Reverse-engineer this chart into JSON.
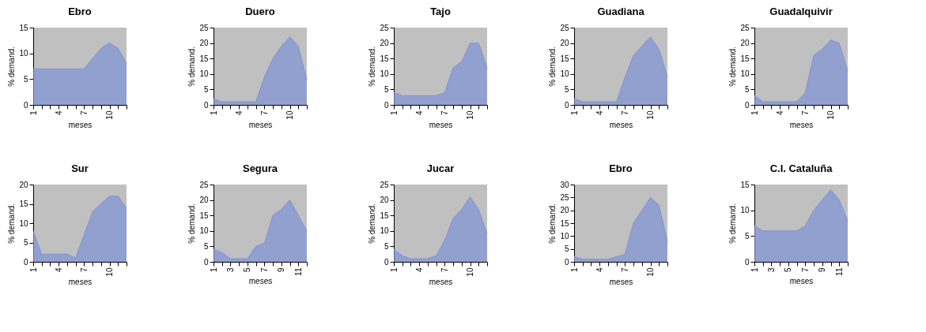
{
  "chart_data": [
    {
      "type": "area",
      "title": "Ebro",
      "xlabel": "meses",
      "ylabel": "% demand.",
      "x": [
        1,
        2,
        3,
        4,
        5,
        6,
        7,
        8,
        9,
        10,
        11,
        12
      ],
      "values": [
        7,
        7,
        7,
        7,
        7,
        7,
        7,
        9,
        11,
        12,
        11,
        8
      ],
      "color": "#7f93d6",
      "xlim": [
        1,
        12
      ],
      "xticks": [
        1,
        {
          "value": 2,
          "label": null
        },
        {
          "value": 3,
          "label": null
        },
        4,
        {
          "value": 5,
          "label": null
        },
        {
          "value": 6,
          "label": null
        },
        7,
        {
          "value": 8,
          "label": null
        },
        {
          "value": 9,
          "label": null
        },
        10,
        {
          "value": 11,
          "label": null
        },
        {
          "value": 12,
          "label": null
        }
      ],
      "ylim": [
        0,
        15
      ],
      "yticks": [
        0,
        5,
        10,
        15
      ]
    },
    {
      "type": "area",
      "title": "Duero",
      "xlabel": "meses",
      "ylabel": "% demand.",
      "x": [
        1,
        2,
        3,
        4,
        5,
        6,
        7,
        8,
        9,
        10,
        11,
        12
      ],
      "values": [
        2,
        1,
        1,
        1,
        1,
        1,
        9,
        15,
        19,
        22,
        19,
        8
      ],
      "color": "#7f93d6",
      "xlim": [
        1,
        12
      ],
      "xticks": [
        1,
        {
          "value": 2,
          "label": null
        },
        {
          "value": 3,
          "label": null
        },
        4,
        {
          "value": 5,
          "label": null
        },
        {
          "value": 6,
          "label": null
        },
        7,
        {
          "value": 8,
          "label": null
        },
        {
          "value": 9,
          "label": null
        },
        10,
        {
          "value": 11,
          "label": null
        },
        {
          "value": 12,
          "label": null
        }
      ],
      "ylim": [
        0,
        25
      ],
      "yticks": [
        0,
        5,
        10,
        15,
        20,
        25
      ]
    },
    {
      "type": "area",
      "title": "Tajo",
      "xlabel": "meses",
      "ylabel": "% demand.",
      "x": [
        1,
        2,
        3,
        4,
        5,
        6,
        7,
        8,
        9,
        10,
        11,
        12
      ],
      "values": [
        4,
        3,
        3,
        3,
        3,
        3,
        4,
        12,
        14,
        20,
        20,
        12
      ],
      "color": "#7f93d6",
      "xlim": [
        1,
        12
      ],
      "xticks": [
        1,
        {
          "value": 2,
          "label": null
        },
        {
          "value": 3,
          "label": null
        },
        4,
        {
          "value": 5,
          "label": null
        },
        {
          "value": 6,
          "label": null
        },
        7,
        {
          "value": 8,
          "label": null
        },
        {
          "value": 9,
          "label": null
        },
        10,
        {
          "value": 11,
          "label": null
        },
        {
          "value": 12,
          "label": null
        }
      ],
      "ylim": [
        0,
        25
      ],
      "yticks": [
        0,
        5,
        10,
        15,
        20,
        25
      ]
    },
    {
      "type": "area",
      "title": "Guadiana",
      "xlabel": "meses",
      "ylabel": "% demand.",
      "x": [
        1,
        2,
        3,
        4,
        5,
        6,
        7,
        8,
        9,
        10,
        11,
        12
      ],
      "values": [
        2,
        1,
        1,
        1,
        1,
        1,
        9,
        16,
        19,
        22,
        18,
        9
      ],
      "color": "#7f93d6",
      "xlim": [
        1,
        12
      ],
      "xticks": [
        1,
        {
          "value": 2,
          "label": null
        },
        {
          "value": 3,
          "label": null
        },
        4,
        {
          "value": 5,
          "label": null
        },
        {
          "value": 6,
          "label": null
        },
        7,
        {
          "value": 8,
          "label": null
        },
        {
          "value": 9,
          "label": null
        },
        10,
        {
          "value": 11,
          "label": null
        },
        {
          "value": 12,
          "label": null
        }
      ],
      "ylim": [
        0,
        25
      ],
      "yticks": [
        0,
        5,
        10,
        15,
        20,
        25
      ]
    },
    {
      "type": "area",
      "title": "Guadalquivir",
      "xlabel": "meses",
      "ylabel": "% demand.",
      "x": [
        1,
        2,
        3,
        4,
        5,
        6,
        7,
        8,
        9,
        10,
        11,
        12
      ],
      "values": [
        3,
        1,
        1,
        1,
        1,
        1,
        4,
        16,
        18,
        21,
        20,
        11
      ],
      "color": "#7f93d6",
      "xlim": [
        1,
        12
      ],
      "xticks": [
        1,
        {
          "value": 2,
          "label": null
        },
        {
          "value": 3,
          "label": null
        },
        4,
        {
          "value": 5,
          "label": null
        },
        {
          "value": 6,
          "label": null
        },
        7,
        {
          "value": 8,
          "label": null
        },
        {
          "value": 9,
          "label": null
        },
        10,
        {
          "value": 11,
          "label": null
        },
        {
          "value": 12,
          "label": null
        }
      ],
      "ylim": [
        0,
        25
      ],
      "yticks": [
        0,
        5,
        10,
        15,
        20,
        25
      ]
    },
    {
      "type": "area",
      "title": "Sur",
      "xlabel": "meses",
      "ylabel": "% demand.",
      "x": [
        1,
        2,
        3,
        4,
        5,
        6,
        7,
        8,
        9,
        10,
        11,
        12
      ],
      "values": [
        8,
        2,
        2,
        2,
        2,
        1,
        7,
        13,
        15,
        17,
        17,
        14
      ],
      "color": "#7f93d6",
      "xlim": [
        1,
        12
      ],
      "xticks": [
        1,
        {
          "value": 2,
          "label": null
        },
        {
          "value": 3,
          "label": null
        },
        4,
        {
          "value": 5,
          "label": null
        },
        {
          "value": 6,
          "label": null
        },
        7,
        {
          "value": 8,
          "label": null
        },
        {
          "value": 9,
          "label": null
        },
        10,
        {
          "value": 11,
          "label": null
        },
        {
          "value": 12,
          "label": null
        }
      ],
      "ylim": [
        0,
        20
      ],
      "yticks": [
        0,
        5,
        10,
        15,
        20
      ]
    },
    {
      "type": "area",
      "title": "Segura",
      "xlabel": "meses",
      "ylabel": "% demand.",
      "x": [
        1,
        2,
        3,
        4,
        5,
        6,
        7,
        8,
        9,
        10,
        11,
        12
      ],
      "values": [
        4,
        3,
        1,
        1,
        1,
        5,
        6,
        15,
        17,
        20,
        15,
        10
      ],
      "color": "#7f93d6",
      "xlim": [
        1,
        12
      ],
      "xticks": [
        1,
        {
          "value": 2,
          "label": null
        },
        3,
        {
          "value": 4,
          "label": null
        },
        5,
        {
          "value": 6,
          "label": null
        },
        7,
        {
          "value": 8,
          "label": null
        },
        9,
        {
          "value": 10,
          "label": null
        },
        11,
        {
          "value": 12,
          "label": null
        }
      ],
      "ylim": [
        0,
        25
      ],
      "yticks": [
        0,
        5,
        10,
        15,
        20,
        25
      ]
    },
    {
      "type": "area",
      "title": "Jucar",
      "xlabel": "meses",
      "ylabel": "% demand.",
      "x": [
        1,
        2,
        3,
        4,
        5,
        6,
        7,
        8,
        9,
        10,
        11,
        12
      ],
      "values": [
        4,
        2,
        1,
        1,
        1,
        2,
        7,
        14,
        17,
        21,
        17,
        9
      ],
      "color": "#7f93d6",
      "xlim": [
        1,
        12
      ],
      "xticks": [
        1,
        {
          "value": 2,
          "label": null
        },
        {
          "value": 3,
          "label": null
        },
        4,
        {
          "value": 5,
          "label": null
        },
        {
          "value": 6,
          "label": null
        },
        7,
        {
          "value": 8,
          "label": null
        },
        {
          "value": 9,
          "label": null
        },
        10,
        {
          "value": 11,
          "label": null
        },
        {
          "value": 12,
          "label": null
        }
      ],
      "ylim": [
        0,
        25
      ],
      "yticks": [
        0,
        5,
        10,
        15,
        20,
        25
      ]
    },
    {
      "type": "area",
      "title": "Ebro",
      "xlabel": "meses",
      "ylabel": "% demand.",
      "x": [
        1,
        2,
        3,
        4,
        5,
        6,
        7,
        8,
        9,
        10,
        11,
        12
      ],
      "values": [
        2,
        1,
        1,
        1,
        1,
        2,
        3,
        15,
        20,
        25,
        22,
        8
      ],
      "color": "#7f93d6",
      "xlim": [
        1,
        12
      ],
      "xticks": [
        1,
        {
          "value": 2,
          "label": null
        },
        {
          "value": 3,
          "label": null
        },
        4,
        {
          "value": 5,
          "label": null
        },
        {
          "value": 6,
          "label": null
        },
        7,
        {
          "value": 8,
          "label": null
        },
        {
          "value": 9,
          "label": null
        },
        10,
        {
          "value": 11,
          "label": null
        },
        {
          "value": 12,
          "label": null
        }
      ],
      "ylim": [
        0,
        30
      ],
      "yticks": [
        0,
        5,
        10,
        15,
        20,
        25,
        30
      ]
    },
    {
      "type": "area",
      "title": "C.I. Cataluña",
      "xlabel": "meses",
      "ylabel": "% demand.",
      "x": [
        1,
        2,
        3,
        4,
        5,
        6,
        7,
        8,
        9,
        10,
        11,
        12
      ],
      "values": [
        7,
        6,
        6,
        6,
        6,
        6,
        7,
        10,
        12,
        14,
        12,
        8
      ],
      "color": "#7f93d6",
      "xlim": [
        1,
        12
      ],
      "xticks": [
        1,
        {
          "value": 2,
          "label": null
        },
        3,
        {
          "value": 4,
          "label": null
        },
        5,
        {
          "value": 6,
          "label": null
        },
        7,
        {
          "value": 8,
          "label": null
        },
        9,
        {
          "value": 10,
          "label": null
        },
        11,
        {
          "value": 12,
          "label": null
        }
      ],
      "ylim": [
        0,
        15
      ],
      "yticks": [
        0,
        5,
        10,
        15
      ]
    }
  ]
}
